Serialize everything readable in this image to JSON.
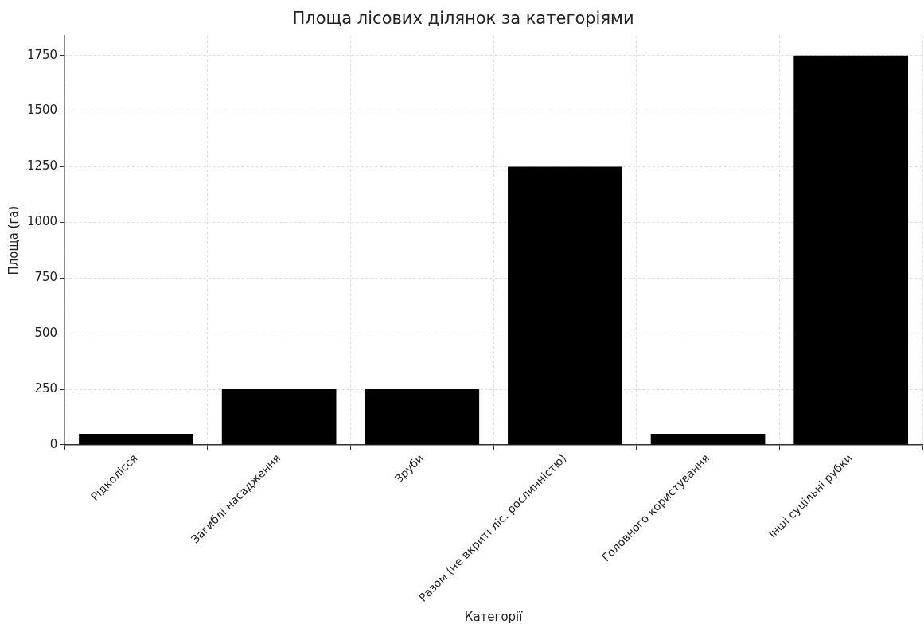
{
  "chart_data": {
    "type": "bar",
    "title": "Площа лісових ділянок за категоріями",
    "xlabel": "Категорії",
    "ylabel": "Площа (га)",
    "categories": [
      "Рідколісся",
      "Загиблі насадження",
      "Зруби",
      "Разом (не вкриті ліс. рослинністю)",
      "Головного користування",
      "Інші суцільні рубки"
    ],
    "values": [
      50,
      250,
      250,
      1250,
      50,
      1750
    ],
    "color": "#000000",
    "ylim": [
      0,
      1837.5
    ],
    "yticks": [
      0,
      250,
      500,
      750,
      1000,
      1250,
      1500,
      1750
    ],
    "grid": true
  }
}
